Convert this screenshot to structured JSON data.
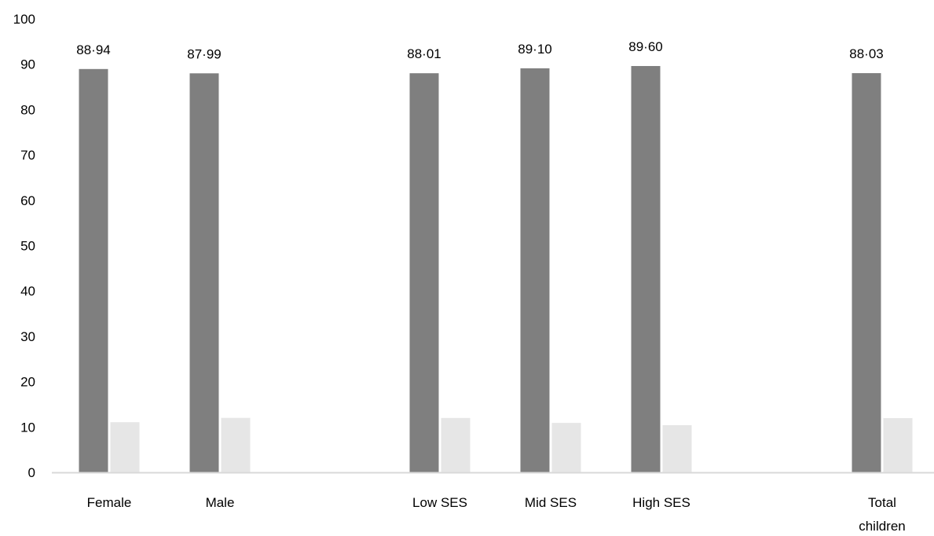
{
  "chart_data": {
    "type": "bar",
    "categories": [
      [
        "Female"
      ],
      [
        "Male"
      ],
      [
        "Low SES"
      ],
      [
        "Mid SES"
      ],
      [
        "High SES"
      ],
      [
        "Total",
        "children"
      ]
    ],
    "series": [
      {
        "values": [
          88.94,
          87.99,
          88.01,
          89.1,
          89.6,
          88.03
        ],
        "color": "#7f7f7f"
      },
      {
        "values": [
          11.06,
          12.01,
          11.99,
          10.9,
          10.4,
          11.97
        ],
        "color": "#e6e6e6"
      }
    ],
    "data_labels": [
      "88·94",
      "87·99",
      "88·01",
      "89·10",
      "89·60",
      "88·03"
    ],
    "ylim": [
      0,
      100
    ],
    "yticks": [
      0,
      10,
      20,
      30,
      40,
      50,
      60,
      70,
      80,
      90,
      100
    ],
    "grid": false,
    "axis_color": "#d9d9d9"
  }
}
